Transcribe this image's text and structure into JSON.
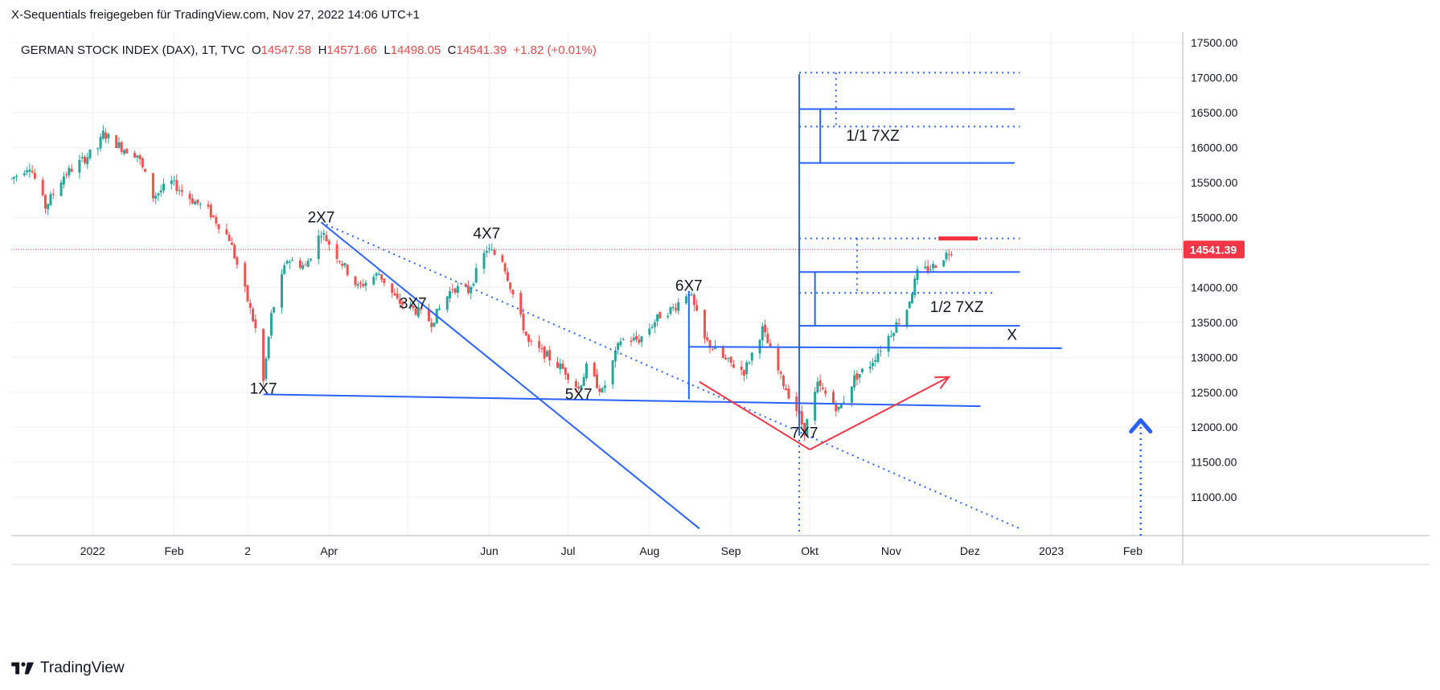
{
  "header": {
    "attribution": "X-Sequentials freigegeben für TradingView.com, Nov 27, 2022 14:06 UTC+1"
  },
  "legend": {
    "symbol": "GERMAN STOCK INDEX (DAX), 1T, TVC",
    "o_label": "O",
    "o_value": "14547.58",
    "h_label": "H",
    "h_value": "14571.66",
    "l_label": "L",
    "l_value": "14498.05",
    "c_label": "C",
    "c_value": "14541.39",
    "change": "+1.82 (+0.01%)"
  },
  "brand": {
    "name": "TradingView"
  },
  "colors": {
    "up": "#26a69a",
    "down": "#ef5350",
    "drawing_blue": "#2962ff",
    "drawing_red": "#f23645",
    "price_tag": "#f23645"
  },
  "chart_data": {
    "type": "candlestick",
    "title": "GERMAN STOCK INDEX (DAX), 1T, TVC",
    "y_axis": {
      "ylim": [
        10450,
        17650
      ],
      "ticks": [
        11000,
        11500,
        12000,
        12500,
        13000,
        13500,
        14000,
        14500,
        15000,
        15500,
        16000,
        16500,
        17000,
        17500
      ],
      "tick_labels": [
        "11000.00",
        "11500.00",
        "12000.00",
        "12500.00",
        "13000.00",
        "13500.00",
        "14000.00",
        "14500.00",
        "15000.00",
        "15500.00",
        "16000.00",
        "16500.00",
        "17000.00",
        "17500.00"
      ],
      "position": "right",
      "grid": true
    },
    "x_axis": {
      "xlim": [
        "2021-12-01",
        "2023-02-20"
      ],
      "ticks": [
        "2022-01-01",
        "2022-02-01",
        "2022-03-01",
        "2022-04-01",
        "2022-05-01",
        "2022-06-01",
        "2022-07-01",
        "2022-08-01",
        "2022-09-01",
        "2022-10-01",
        "2022-11-01",
        "2022-12-01",
        "2023-01-01",
        "2023-02-01"
      ],
      "tick_labels": [
        "2022",
        "Feb",
        "2",
        "Apr",
        "",
        "Jun",
        "Jul",
        "Aug",
        "Sep",
        "Okt",
        "Nov",
        "Dez",
        "2023",
        "Feb"
      ],
      "grid": true
    },
    "last_price": {
      "value": 14541.39,
      "label": "14541.39"
    },
    "ohlc_path": [
      [
        "2021-12-01",
        15550
      ],
      [
        "2021-12-08",
        15750
      ],
      [
        "2021-12-14",
        15150
      ],
      [
        "2021-12-21",
        15600
      ],
      [
        "2022-01-03",
        16000
      ],
      [
        "2022-01-05",
        16200
      ],
      [
        "2022-01-12",
        16000
      ],
      [
        "2022-01-18",
        15900
      ],
      [
        "2022-01-24",
        15300
      ],
      [
        "2022-01-31",
        15500
      ],
      [
        "2022-02-08",
        15250
      ],
      [
        "2022-02-14",
        15100
      ],
      [
        "2022-02-22",
        14700
      ],
      [
        "2022-02-28",
        13950
      ],
      [
        "2022-03-04",
        13400
      ],
      [
        "2022-03-07",
        12650
      ],
      [
        "2022-03-10",
        13600
      ],
      [
        "2022-03-16",
        14400
      ],
      [
        "2022-03-23",
        14300
      ],
      [
        "2022-03-29",
        14800
      ],
      [
        "2022-04-05",
        14400
      ],
      [
        "2022-04-12",
        14000
      ],
      [
        "2022-04-20",
        14200
      ],
      [
        "2022-04-27",
        13800
      ],
      [
        "2022-05-05",
        13650
      ],
      [
        "2022-05-10",
        13500
      ],
      [
        "2022-05-18",
        14000
      ],
      [
        "2022-05-24",
        13950
      ],
      [
        "2022-05-31",
        14550
      ],
      [
        "2022-06-06",
        14400
      ],
      [
        "2022-06-10",
        13900
      ],
      [
        "2022-06-16",
        13200
      ],
      [
        "2022-06-22",
        13050
      ],
      [
        "2022-06-30",
        12800
      ],
      [
        "2022-07-05",
        12550
      ],
      [
        "2022-07-08",
        12850
      ],
      [
        "2022-07-14",
        12500
      ],
      [
        "2022-07-21",
        13250
      ],
      [
        "2022-07-28",
        13250
      ],
      [
        "2022-08-05",
        13600
      ],
      [
        "2022-08-10",
        13700
      ],
      [
        "2022-08-16",
        13950
      ],
      [
        "2022-08-22",
        13250
      ],
      [
        "2022-08-30",
        12950
      ],
      [
        "2022-09-06",
        12800
      ],
      [
        "2022-09-09",
        13050
      ],
      [
        "2022-09-13",
        13400
      ],
      [
        "2022-09-20",
        12700
      ],
      [
        "2022-09-26",
        12250
      ],
      [
        "2022-09-29",
        11950
      ],
      [
        "2022-10-04",
        12600
      ],
      [
        "2022-10-12",
        12250
      ],
      [
        "2022-10-18",
        12700
      ],
      [
        "2022-10-24",
        12900
      ],
      [
        "2022-10-31",
        13300
      ],
      [
        "2022-11-07",
        13700
      ],
      [
        "2022-11-11",
        14200
      ],
      [
        "2022-11-17",
        14300
      ],
      [
        "2022-11-24",
        14541
      ]
    ],
    "annotations": [
      {
        "text": "1X7",
        "date": "2022-03-07",
        "price": 12480
      },
      {
        "text": "2X7",
        "date": "2022-03-29",
        "price": 14930
      },
      {
        "text": "3X7",
        "date": "2022-05-03",
        "price": 13700
      },
      {
        "text": "4X7",
        "date": "2022-05-31",
        "price": 14700
      },
      {
        "text": "5X7",
        "date": "2022-07-05",
        "price": 12400
      },
      {
        "text": "6X7",
        "date": "2022-08-16",
        "price": 13950
      },
      {
        "text": "7X7",
        "date": "2022-09-29",
        "price": 11850
      },
      {
        "text": "1/1 7XZ",
        "date": "2022-10-25",
        "price": 16100
      },
      {
        "text": "1/2 7XZ",
        "date": "2022-11-26",
        "price": 13650
      },
      {
        "text": "X",
        "date": "2022-12-17",
        "price": 13250
      }
    ],
    "drawings": [
      {
        "type": "line",
        "style": "solid",
        "color": "#2962ff",
        "from": [
          "2022-03-07",
          12470
        ],
        "to": [
          "2022-12-05",
          12300
        ]
      },
      {
        "type": "line",
        "style": "solid",
        "color": "#2962ff",
        "from": [
          "2022-03-29",
          14930
        ],
        "to": [
          "2022-08-20",
          10550
        ]
      },
      {
        "type": "line",
        "style": "dotted",
        "color": "#2962ff",
        "from": [
          "2022-03-29",
          14930
        ],
        "to": [
          "2022-12-20",
          10550
        ]
      },
      {
        "type": "line",
        "style": "solid",
        "color": "#2962ff",
        "from": [
          "2022-08-16",
          13950
        ],
        "to": [
          "2022-08-16",
          12400
        ]
      },
      {
        "type": "line",
        "style": "solid",
        "color": "#2962ff",
        "from": [
          "2022-08-16",
          13150
        ],
        "to": [
          "2023-01-05",
          13130
        ]
      },
      {
        "type": "line",
        "style": "solid",
        "color": "#2962ff",
        "from": [
          "2022-09-27",
          17050
        ],
        "to": [
          "2022-09-27",
          11900
        ]
      },
      {
        "type": "line",
        "style": "dotted",
        "color": "#2962ff",
        "from": [
          "2022-09-27",
          11900
        ],
        "to": [
          "2022-09-27",
          10450
        ]
      },
      {
        "type": "line",
        "style": "dotted",
        "color": "#2962ff",
        "from": [
          "2022-09-27",
          17070
        ],
        "to": [
          "2022-12-20",
          17070
        ]
      },
      {
        "type": "line",
        "style": "dotted",
        "color": "#2962ff",
        "from": [
          "2022-10-11",
          17070
        ],
        "to": [
          "2022-10-11",
          16270
        ]
      },
      {
        "type": "line",
        "style": "solid",
        "color": "#2962ff",
        "from": [
          "2022-09-27",
          16550
        ],
        "to": [
          "2022-12-18",
          16550
        ]
      },
      {
        "type": "line",
        "style": "dotted",
        "color": "#2962ff",
        "from": [
          "2022-09-27",
          16300
        ],
        "to": [
          "2022-12-20",
          16300
        ]
      },
      {
        "type": "line",
        "style": "solid",
        "color": "#2962ff",
        "from": [
          "2022-10-05",
          16550
        ],
        "to": [
          "2022-10-05",
          15780
        ]
      },
      {
        "type": "line",
        "style": "solid",
        "color": "#2962ff",
        "from": [
          "2022-09-27",
          15780
        ],
        "to": [
          "2022-12-18",
          15780
        ]
      },
      {
        "type": "line",
        "style": "dotted",
        "color": "#2962ff",
        "from": [
          "2022-09-27",
          14700
        ],
        "to": [
          "2022-12-20",
          14700
        ]
      },
      {
        "type": "line",
        "style": "dotted",
        "color": "#2962ff",
        "from": [
          "2022-10-19",
          14700
        ],
        "to": [
          "2022-10-19",
          13920
        ]
      },
      {
        "type": "line",
        "style": "solid",
        "color": "#2962ff",
        "from": [
          "2022-09-27",
          14220
        ],
        "to": [
          "2022-12-20",
          14220
        ]
      },
      {
        "type": "line",
        "style": "dotted",
        "color": "#2962ff",
        "from": [
          "2022-09-27",
          13920
        ],
        "to": [
          "2022-12-11",
          13920
        ]
      },
      {
        "type": "line",
        "style": "solid",
        "color": "#2962ff",
        "from": [
          "2022-10-03",
          14220
        ],
        "to": [
          "2022-10-03",
          13450
        ]
      },
      {
        "type": "line",
        "style": "solid",
        "color": "#2962ff",
        "from": [
          "2022-09-27",
          13450
        ],
        "to": [
          "2022-12-20",
          13450
        ]
      },
      {
        "type": "line",
        "style": "solid",
        "color": "#f23645",
        "from": [
          "2022-08-20",
          12650
        ],
        "to": [
          "2022-10-01",
          11680
        ]
      },
      {
        "type": "arrow",
        "style": "solid",
        "color": "#f23645",
        "from": [
          "2022-10-01",
          11680
        ],
        "to": [
          "2022-11-23",
          12720
        ]
      },
      {
        "type": "line",
        "style": "thick",
        "color": "#f23645",
        "from": [
          "2022-11-19",
          14700
        ],
        "to": [
          "2022-12-04",
          14700
        ]
      },
      {
        "type": "arrow",
        "style": "dotted-up",
        "color": "#2962ff",
        "from": [
          "2023-02-04",
          10450
        ],
        "to": [
          "2023-02-04",
          12100
        ]
      }
    ]
  }
}
